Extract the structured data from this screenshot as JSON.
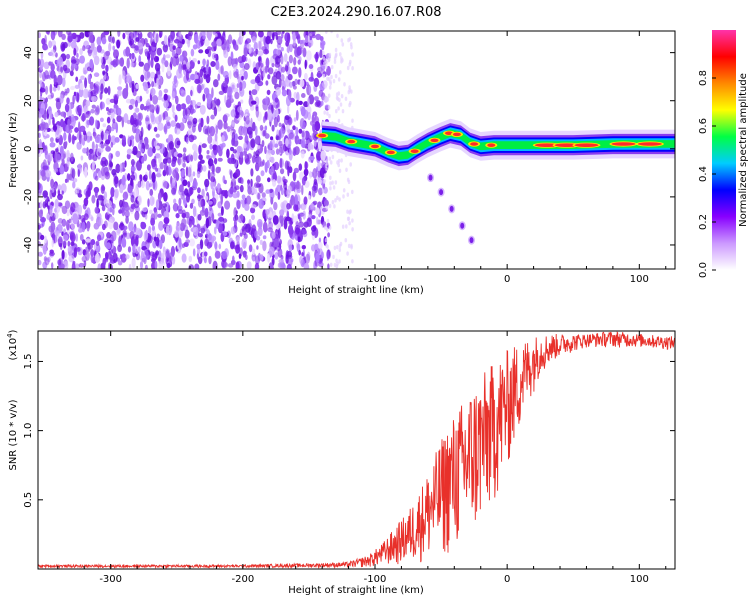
{
  "title": "C2E3.2024.290.16.07.R08",
  "chart_data": [
    {
      "type": "heatmap",
      "xlabel": "Height of straight line (km)",
      "ylabel": "Frequency (Hz)",
      "xlim": [
        -355,
        127
      ],
      "ylim": [
        -50,
        49
      ],
      "x_ticks": [
        -300,
        -200,
        -100,
        0,
        100
      ],
      "y_ticks": [
        40,
        20,
        0,
        -20,
        -40
      ],
      "grid": false,
      "colorbar": {
        "label": "Normalized spectral amplitude",
        "range": [
          0,
          1
        ],
        "ticks": [
          "0.0",
          "0.2",
          "0.4",
          "0.6",
          "0.8"
        ],
        "colormap": [
          "#ffffff",
          "#cc99ff",
          "#8800ff",
          "#0000ff",
          "#00ccff",
          "#00ff44",
          "#ffff00",
          "#ff8800",
          "#ff0000",
          "#ff33aa"
        ]
      },
      "noise_region_x": [
        -355,
        -135
      ],
      "main_signal": [
        {
          "x": -140,
          "y": 5.5
        },
        {
          "x": -130,
          "y": 5.0
        },
        {
          "x": -120,
          "y": 3.0
        },
        {
          "x": -110,
          "y": 2.0
        },
        {
          "x": -100,
          "y": 1.0
        },
        {
          "x": -90,
          "y": -1.5
        },
        {
          "x": -82,
          "y": -3.0
        },
        {
          "x": -75,
          "y": -2.5
        },
        {
          "x": -68,
          "y": 0.0
        },
        {
          "x": -60,
          "y": 2.5
        },
        {
          "x": -50,
          "y": 5.0
        },
        {
          "x": -43,
          "y": 6.5
        },
        {
          "x": -35,
          "y": 5.5
        },
        {
          "x": -28,
          "y": 2.5
        },
        {
          "x": -20,
          "y": 1.0
        },
        {
          "x": -10,
          "y": 1.5
        },
        {
          "x": 0,
          "y": 1.5
        },
        {
          "x": 20,
          "y": 1.5
        },
        {
          "x": 50,
          "y": 1.5
        },
        {
          "x": 80,
          "y": 2.0
        },
        {
          "x": 100,
          "y": 2.0
        },
        {
          "x": 127,
          "y": 2.0
        }
      ],
      "secondary_trace": [
        {
          "x": -58,
          "y": -12
        },
        {
          "x": -50,
          "y": -18
        },
        {
          "x": -42,
          "y": -25
        },
        {
          "x": -34,
          "y": -32
        },
        {
          "x": -27,
          "y": -38
        }
      ]
    },
    {
      "type": "line",
      "xlabel": "Height of straight line (km)",
      "ylabel": "SNR (10 * v/v)",
      "y_multiplier": "(x10",
      "y_multiplier_exp": "4",
      "y_multiplier_close": ")",
      "xlim": [
        -355,
        127
      ],
      "ylim": [
        0,
        1.72
      ],
      "x_ticks": [
        -300,
        -200,
        -100,
        0,
        100
      ],
      "y_ticks": [
        "0.5",
        "1.0",
        "1.5"
      ],
      "y_tick_values": [
        0.5,
        1.0,
        1.5
      ],
      "grid": false,
      "line_color": "#e8302a",
      "series": [
        {
          "x": [
            -355,
            -300,
            -250,
            -200,
            -150,
            -120,
            -105,
            -95,
            -85,
            -75,
            -65,
            -55,
            -45,
            -35,
            -25,
            -15,
            -5,
            5,
            15,
            25,
            35,
            45,
            60,
            80,
            100,
            127
          ],
          "y": [
            0.02,
            0.02,
            0.02,
            0.02,
            0.02,
            0.02,
            0.03,
            0.05,
            0.08,
            0.12,
            0.2,
            0.3,
            0.42,
            0.55,
            0.68,
            0.82,
            0.98,
            1.18,
            1.38,
            1.52,
            1.58,
            1.62,
            1.65,
            1.66,
            1.65,
            1.63
          ],
          "upper_envelope": [
            0.03,
            0.03,
            0.03,
            0.03,
            0.04,
            0.05,
            0.1,
            0.18,
            0.3,
            0.42,
            0.6,
            0.82,
            1.05,
            1.2,
            1.35,
            1.45,
            1.55,
            1.62,
            1.67,
            1.7,
            1.7,
            1.7,
            1.7,
            1.72,
            1.7,
            1.68
          ],
          "lower_envelope": [
            0.01,
            0.01,
            0.01,
            0.01,
            0.01,
            0.01,
            0.01,
            0.02,
            0.02,
            0.03,
            0.04,
            0.05,
            0.08,
            0.12,
            0.2,
            0.35,
            0.55,
            0.85,
            1.15,
            1.4,
            1.5,
            1.55,
            1.6,
            1.6,
            1.6,
            1.58
          ]
        }
      ]
    }
  ]
}
